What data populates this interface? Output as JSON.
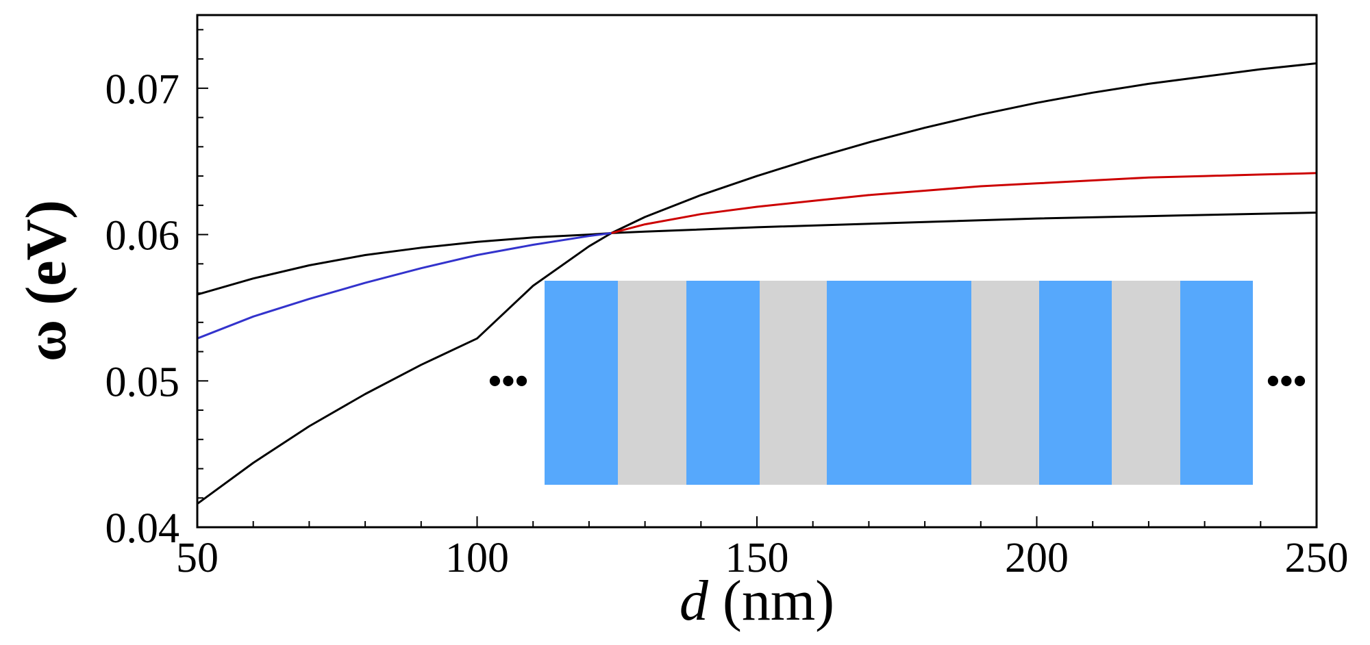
{
  "chart_data": {
    "type": "line",
    "title": "",
    "xlabel": {
      "italic": "d",
      "rest": " (nm)"
    },
    "ylabel": "ω (eV)",
    "xlim": [
      50,
      250
    ],
    "ylim": [
      0.04,
      0.075
    ],
    "x_ticks": [
      50,
      100,
      150,
      200,
      250
    ],
    "x_tick_labels": [
      "50",
      "100",
      "150",
      "200",
      "250"
    ],
    "y_ticks": [
      0.04,
      0.05,
      0.06,
      0.07
    ],
    "y_tick_labels": [
      "0.04",
      "0.05",
      "0.06",
      "0.07"
    ],
    "x_minor_step": 10,
    "y_minor_step": 0.002,
    "grid": false,
    "series": [
      {
        "name": "upper-black",
        "color": "#000000",
        "x": [
          50,
          60,
          70,
          80,
          90,
          100,
          110,
          120,
          124,
          130,
          140,
          150,
          160,
          170,
          180,
          190,
          200,
          210,
          220,
          230,
          240,
          250
        ],
        "y": [
          0.0416,
          0.0444,
          0.0469,
          0.0491,
          0.0511,
          0.0529,
          0.0565,
          0.0592,
          0.0601,
          0.0612,
          0.0627,
          0.064,
          0.0652,
          0.0663,
          0.0673,
          0.0682,
          0.069,
          0.0697,
          0.0703,
          0.0708,
          0.0713,
          0.0717
        ]
      },
      {
        "name": "lower-black",
        "color": "#000000",
        "x": [
          50,
          60,
          70,
          80,
          90,
          100,
          110,
          120,
          124,
          130,
          150,
          175,
          200,
          225,
          250
        ],
        "y": [
          0.0559,
          0.057,
          0.0579,
          0.0586,
          0.0591,
          0.0595,
          0.0598,
          0.06,
          0.0601,
          0.0602,
          0.0605,
          0.0608,
          0.0611,
          0.0613,
          0.0615
        ]
      },
      {
        "name": "blue",
        "color": "#3333cc",
        "x": [
          50,
          60,
          70,
          80,
          90,
          100,
          110,
          120,
          124
        ],
        "y": [
          0.0529,
          0.0544,
          0.0556,
          0.0567,
          0.0577,
          0.0586,
          0.0593,
          0.0599,
          0.0601
        ]
      },
      {
        "name": "red",
        "color": "#cc0000",
        "x": [
          124,
          130,
          140,
          150,
          160,
          170,
          180,
          190,
          200,
          210,
          220,
          230,
          240,
          250
        ],
        "y": [
          0.0601,
          0.0607,
          0.0614,
          0.0619,
          0.0623,
          0.0627,
          0.063,
          0.0633,
          0.0635,
          0.0637,
          0.0639,
          0.064,
          0.0641,
          0.0642
        ]
      }
    ],
    "inset": {
      "description_colors": {
        "blue": "#56a8fc",
        "gray": "#d3d3d3"
      },
      "stripes": [
        "blue",
        "gray",
        "blue",
        "gray",
        "blue-wide",
        "gray",
        "blue",
        "gray",
        "blue"
      ],
      "ellipsis_left": "•••",
      "ellipsis_right": "•••"
    }
  }
}
